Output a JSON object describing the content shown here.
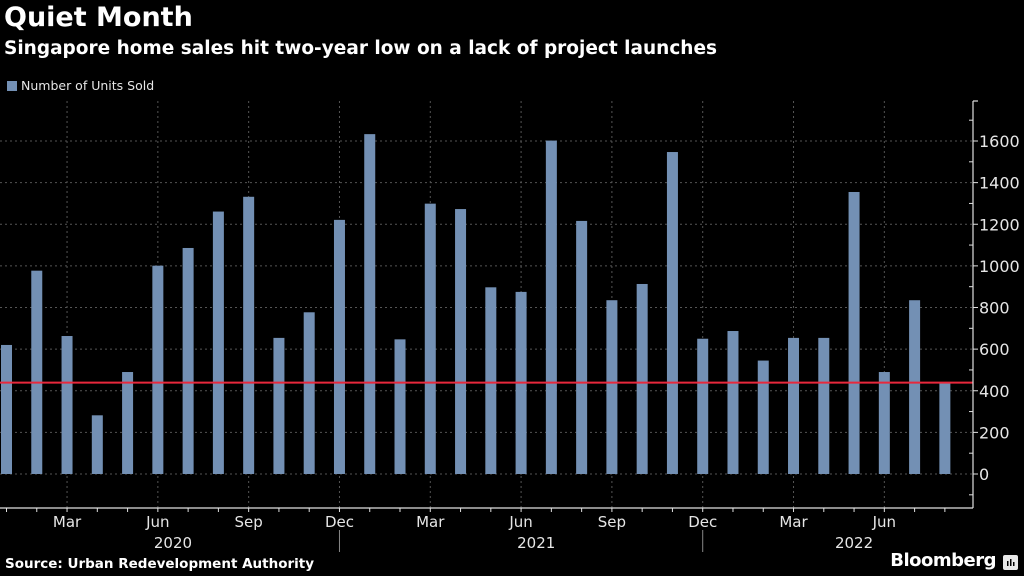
{
  "header": {
    "title": "Quiet Month",
    "subtitle": "Singapore home sales hit two-year low on a lack of project launches"
  },
  "footer": {
    "source": "Source: Urban Redevelopment Authority",
    "brand": "Bloomberg",
    "brand_icon": "bloomberg-chart-icon"
  },
  "colors": {
    "background": "#000000",
    "bar": "#7390b4",
    "reference_line": "#e8283c",
    "grid": "#555555",
    "axis": "#e0e0e0"
  },
  "chart_data": {
    "type": "bar",
    "title": "Quiet Month",
    "subtitle": "Singapore home sales hit two-year low on a lack of project launches",
    "legend": [
      "Number of Units Sold"
    ],
    "legend_position": "top-left",
    "xlabel": "",
    "ylabel": "",
    "y_axis_side": "right",
    "ylim": [
      -160,
      1800
    ],
    "yticks": [
      0,
      200,
      400,
      600,
      800,
      1000,
      1200,
      1400,
      1600
    ],
    "ytick_labels": [
      "0",
      "200",
      "400",
      "600",
      "800",
      "1000",
      "1200",
      "1400",
      "1600"
    ],
    "grid": true,
    "categories": [
      "Jan 2020",
      "Feb 2020",
      "Mar 2020",
      "Apr 2020",
      "May 2020",
      "Jun 2020",
      "Jul 2020",
      "Aug 2020",
      "Sep 2020",
      "Oct 2020",
      "Nov 2020",
      "Dec 2020",
      "Jan 2021",
      "Feb 2021",
      "Mar 2021",
      "Apr 2021",
      "May 2021",
      "Jun 2021",
      "Jul 2021",
      "Aug 2021",
      "Sep 2021",
      "Oct 2021",
      "Nov 2021",
      "Dec 2021",
      "Jan 2022",
      "Feb 2022",
      "Mar 2022",
      "Apr 2022",
      "May 2022",
      "Jun 2022",
      "Jul 2022",
      "Aug 2022"
    ],
    "series": [
      {
        "name": "Number of Units Sold",
        "values": [
          620,
          977,
          663,
          282,
          490,
          1001,
          1086,
          1261,
          1332,
          654,
          777,
          1221,
          1633,
          647,
          1299,
          1273,
          897,
          875,
          1602,
          1216,
          835,
          913,
          1547,
          650,
          687,
          545,
          654,
          654,
          1355,
          490,
          835,
          439
        ]
      }
    ],
    "reference_line": {
      "value": 439
    },
    "xtick_labels": [
      {
        "index": 2,
        "label": "Mar"
      },
      {
        "index": 5,
        "label": "Jun"
      },
      {
        "index": 8,
        "label": "Sep"
      },
      {
        "index": 11,
        "label": "Dec"
      },
      {
        "index": 14,
        "label": "Mar"
      },
      {
        "index": 17,
        "label": "Jun"
      },
      {
        "index": 20,
        "label": "Sep"
      },
      {
        "index": 23,
        "label": "Dec"
      },
      {
        "index": 26,
        "label": "Mar"
      },
      {
        "index": 29,
        "label": "Jun"
      }
    ],
    "year_labels": [
      {
        "index": 5.5,
        "label": "2020"
      },
      {
        "index": 17.5,
        "label": "2021"
      },
      {
        "index": 28,
        "label": "2022"
      }
    ],
    "year_separators": [
      11,
      23
    ]
  }
}
